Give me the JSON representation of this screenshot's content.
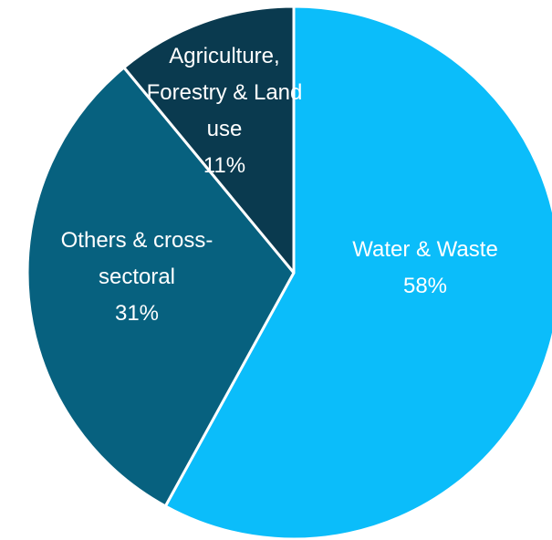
{
  "chart_data": {
    "type": "pie",
    "slices": [
      {
        "label_lines": [
          "Water & Waste"
        ],
        "value": 58,
        "value_label": "58%",
        "color": "#0bbdfa"
      },
      {
        "label_lines": [
          "Others & cross-",
          "sectoral"
        ],
        "value": 31,
        "value_label": "31%",
        "color": "#07617f"
      },
      {
        "label_lines": [
          "Agriculture,",
          "Forestry & Land",
          "use"
        ],
        "value": 11,
        "value_label": "11%",
        "color": "#0a3a4f"
      }
    ],
    "start": "12 o'clock",
    "direction": "clockwise",
    "slice_border_color": "#ffffff",
    "legend": "none"
  }
}
